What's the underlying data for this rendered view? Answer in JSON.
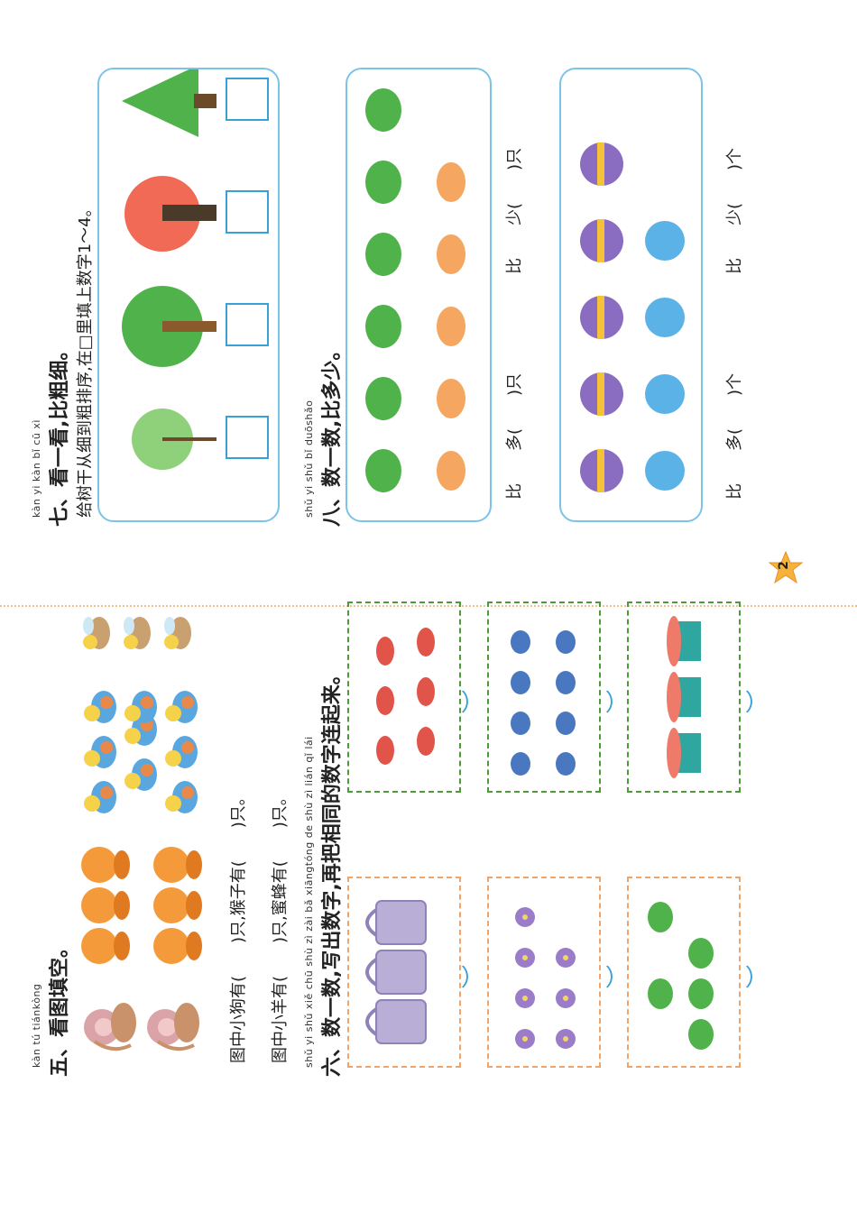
{
  "page_number": "2",
  "section5": {
    "pinyin": "kàn tú tiánkòng",
    "title": "五、看图填空。",
    "line1": "图中小狗有(　　)只,猴子有(　　)只。",
    "line2": "图中小羊有(　　)只,蜜蜂有(　　)只。"
  },
  "section6": {
    "pinyin": "shǔ yi shǔ   xiě chū shù zì   zài bǎ xiāngtóng de shù zì lián qǐ lái",
    "title": "六、数一数,写出数字,再把相同的数字连起来。"
  },
  "section7": {
    "pinyin": "kàn yi kàn   bǐ cū xì",
    "title": "七、看一看,比粗细。",
    "instruction": "给树干从细到粗排序,在□里填上数字1～4。"
  },
  "section8": {
    "pinyin": "shǔ yi shǔ   bǐ duōshǎo",
    "title": "八、数一数,比多少。",
    "compare1": "比　　多(　　)只",
    "compare2": "比　　少(　　)只",
    "compare3": "比　　多(　　)个",
    "compare4": "比　　少(　　)个"
  },
  "counts": {
    "monkeys": 2,
    "dogs": 6,
    "sheep": 9,
    "bees": 3,
    "cups": 3,
    "flowers": 7,
    "frogs6": 5,
    "lobsters": 6,
    "squids": 8,
    "cakes": 3,
    "frogs8": 6,
    "crabs8": 5,
    "balls": 5,
    "soccer": 4
  },
  "colors": {
    "accent_blue": "#3aa0d8",
    "panel_border": "#7cc3e8",
    "frame_orange": "#f0a46a",
    "frame_green": "#4c9a3a",
    "star": "#f7b23b"
  }
}
